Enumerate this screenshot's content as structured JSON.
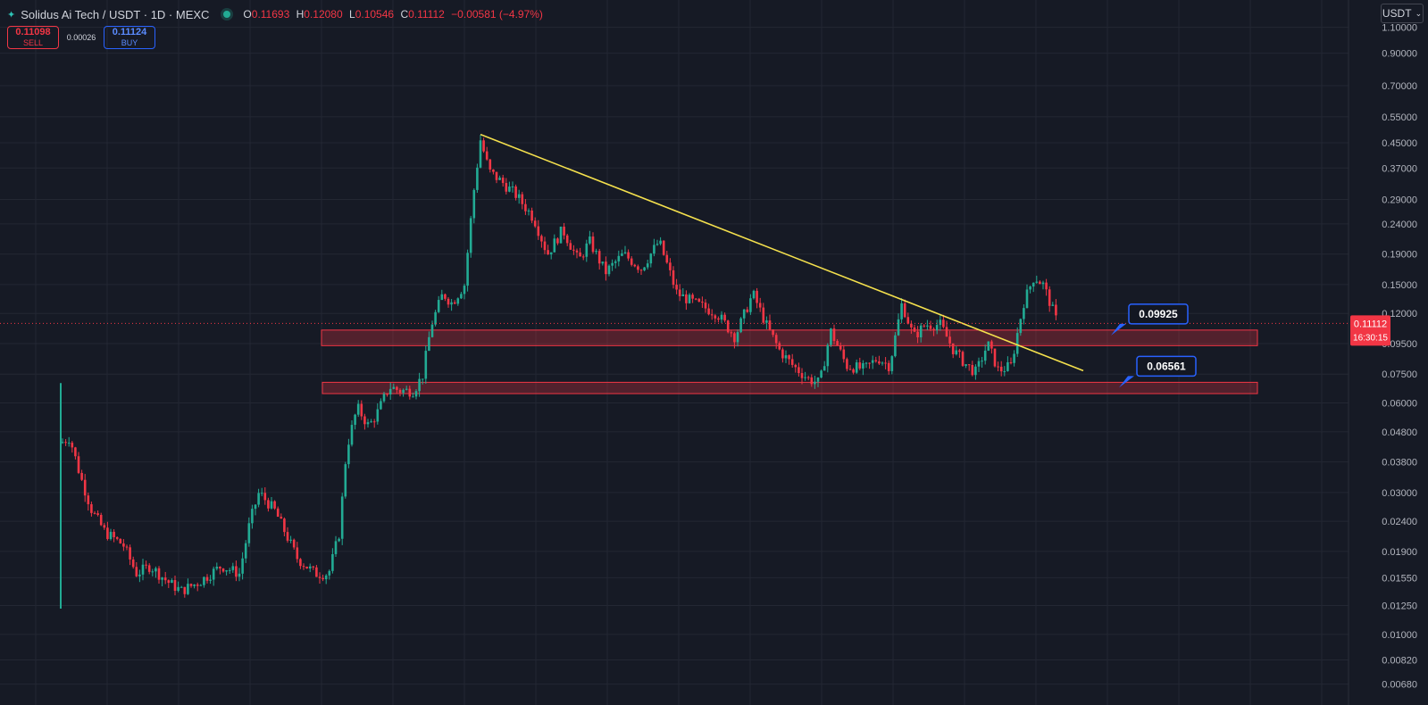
{
  "header": {
    "title": "Solidus Ai Tech / USDT · 1D · MEXC",
    "o_label": "O",
    "o": "0.11693",
    "h_label": "H",
    "h": "0.12080",
    "l_label": "L",
    "l": "0.10546",
    "c_label": "C",
    "c": "0.11112",
    "change": "−0.00581 (−4.97%)"
  },
  "trade": {
    "sell_price": "0.11098",
    "sell_label": "SELL",
    "spread": "0.00026",
    "buy_price": "0.11124",
    "buy_label": "BUY"
  },
  "currency_label": "USDT",
  "colors": {
    "background": "#161a25",
    "grid": "#232733",
    "up": "#22ab94",
    "down": "#f23645",
    "trendline": "#f4e04d",
    "zone": "#f23645",
    "label_border": "#2962ff"
  },
  "chart_data": {
    "type": "candlestick",
    "scale": "log",
    "grid": true,
    "y_ticks": [
      "1.10000",
      "0.90000",
      "0.70000",
      "0.55000",
      "0.45000",
      "0.37000",
      "0.29000",
      "0.24000",
      "0.19000",
      "0.15000",
      "0.12000",
      "0.09500",
      "0.07500",
      "0.06000",
      "0.04800",
      "0.03800",
      "0.03000",
      "0.02400",
      "0.01900",
      "0.01550",
      "0.01250",
      "0.01000",
      "0.00820",
      "0.00680"
    ],
    "y_tick_values": [
      1.1,
      0.9,
      0.7,
      0.55,
      0.45,
      0.37,
      0.29,
      0.24,
      0.19,
      0.15,
      0.12,
      0.095,
      0.075,
      0.06,
      0.048,
      0.038,
      0.03,
      0.024,
      0.019,
      0.0155,
      0.0125,
      0.01,
      0.0082,
      0.0068
    ],
    "ylim": [
      0.0062,
      1.2
    ],
    "x_range": [
      0,
      1116
    ],
    "last_price": {
      "value": 0.11112,
      "label": "0.11112",
      "countdown": "16:30:15"
    },
    "path_points": [
      [
        0,
        0.044
      ],
      [
        10,
        0.046
      ],
      [
        22,
        0.034
      ],
      [
        35,
        0.026
      ],
      [
        50,
        0.022
      ],
      [
        70,
        0.02
      ],
      [
        85,
        0.016
      ],
      [
        100,
        0.017
      ],
      [
        120,
        0.015
      ],
      [
        135,
        0.014
      ],
      [
        155,
        0.015
      ],
      [
        180,
        0.017
      ],
      [
        200,
        0.016
      ],
      [
        212,
        0.024
      ],
      [
        222,
        0.03
      ],
      [
        240,
        0.026
      ],
      [
        265,
        0.018
      ],
      [
        285,
        0.016
      ],
      [
        300,
        0.016
      ],
      [
        312,
        0.022
      ],
      [
        320,
        0.042
      ],
      [
        332,
        0.058
      ],
      [
        345,
        0.05
      ],
      [
        355,
        0.056
      ],
      [
        368,
        0.068
      ],
      [
        380,
        0.066
      ],
      [
        395,
        0.066
      ],
      [
        405,
        0.074
      ],
      [
        415,
        0.11
      ],
      [
        428,
        0.14
      ],
      [
        438,
        0.13
      ],
      [
        452,
        0.15
      ],
      [
        462,
        0.3
      ],
      [
        470,
        0.46
      ],
      [
        480,
        0.36
      ],
      [
        495,
        0.33
      ],
      [
        510,
        0.3
      ],
      [
        530,
        0.25
      ],
      [
        545,
        0.19
      ],
      [
        562,
        0.23
      ],
      [
        580,
        0.18
      ],
      [
        592,
        0.21
      ],
      [
        610,
        0.165
      ],
      [
        630,
        0.19
      ],
      [
        650,
        0.17
      ],
      [
        670,
        0.21
      ],
      [
        690,
        0.14
      ],
      [
        710,
        0.13
      ],
      [
        735,
        0.12
      ],
      [
        755,
        0.1
      ],
      [
        775,
        0.14
      ],
      [
        790,
        0.11
      ],
      [
        805,
        0.09
      ],
      [
        820,
        0.08
      ],
      [
        838,
        0.072
      ],
      [
        850,
        0.07
      ],
      [
        862,
        0.105
      ],
      [
        880,
        0.08
      ],
      [
        900,
        0.078
      ],
      [
        915,
        0.085
      ],
      [
        928,
        0.08
      ],
      [
        942,
        0.13
      ],
      [
        955,
        0.1
      ],
      [
        968,
        0.11
      ],
      [
        985,
        0.11
      ],
      [
        1000,
        0.09
      ],
      [
        1015,
        0.08
      ],
      [
        1025,
        0.076
      ],
      [
        1038,
        0.095
      ],
      [
        1050,
        0.077
      ],
      [
        1064,
        0.08
      ],
      [
        1078,
        0.13
      ],
      [
        1090,
        0.16
      ],
      [
        1100,
        0.15
      ],
      [
        1108,
        0.13
      ],
      [
        1116,
        0.111
      ]
    ],
    "first_bar": {
      "x": 0,
      "low": 0.0122,
      "high": 0.07
    },
    "trendline": {
      "from": [
        470,
        0.48
      ],
      "to": [
        1145,
        0.077
      ]
    },
    "zones": [
      {
        "name": "upper",
        "x_from": 292,
        "x_to": 1340,
        "high": 0.1055,
        "low": 0.0935,
        "label": "0.09925",
        "label_x": 1196
      },
      {
        "name": "lower",
        "x_from": 293,
        "x_to": 1340,
        "high": 0.0704,
        "low": 0.0645,
        "label": "0.06561",
        "label_x": 1205
      }
    ]
  }
}
